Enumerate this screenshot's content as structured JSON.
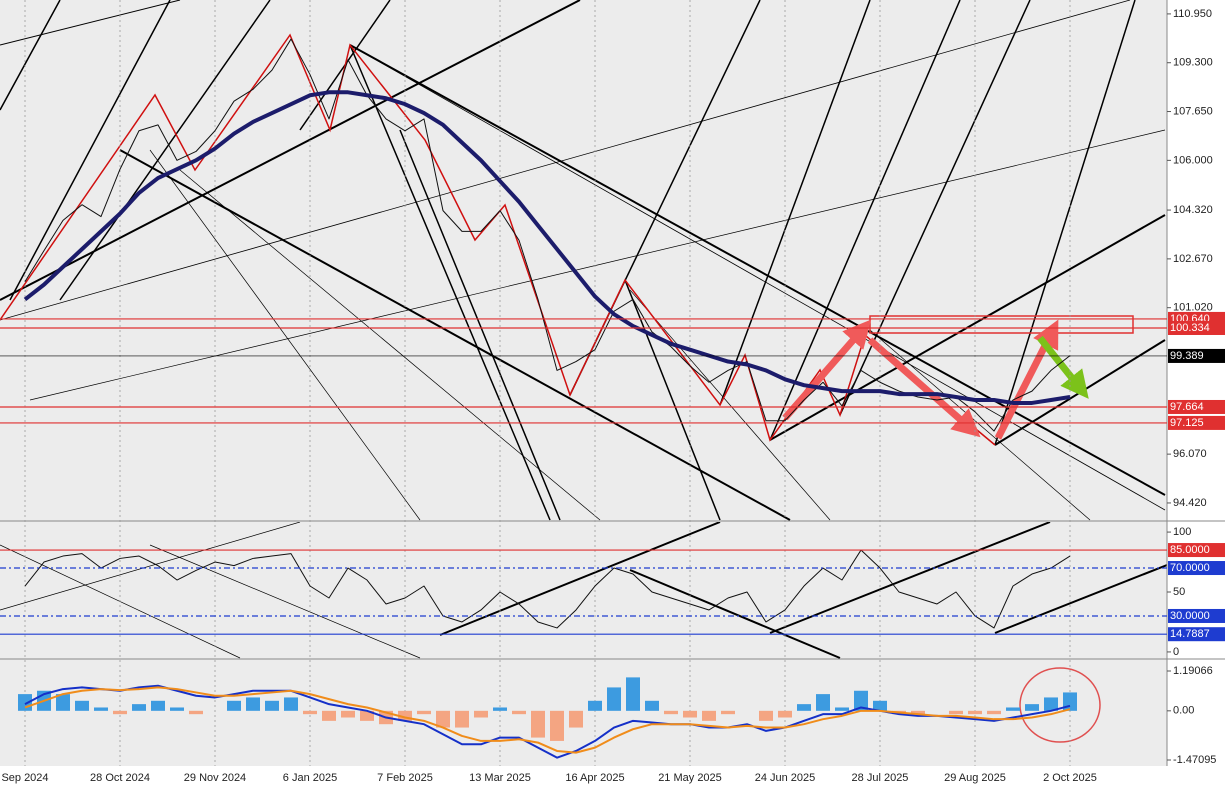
{
  "chart_data": [
    {
      "type": "line",
      "ylim": [
        93.81,
        111.42
      ],
      "yticks": [
        {
          "value": 110.95,
          "label": "110.950"
        },
        {
          "value": 109.3,
          "label": "109.300"
        },
        {
          "value": 107.65,
          "label": "107.650"
        },
        {
          "value": 106,
          "label": "106.000"
        },
        {
          "value": 104.32,
          "label": "104.320"
        },
        {
          "value": 102.67,
          "label": "102.670"
        },
        {
          "value": 101.02,
          "label": "101.020"
        },
        {
          "value": 96.07,
          "label": "96.070"
        },
        {
          "value": 94.42,
          "label": "94.420"
        }
      ],
      "levels": [
        {
          "value": 100.64,
          "label": "100.640",
          "color": "#e03030"
        },
        {
          "value": 100.334,
          "label": "100.334",
          "color": "#e03030"
        },
        {
          "value": 99.389,
          "label": "99.389",
          "color": "#000000"
        },
        {
          "value": 97.664,
          "label": "97.664",
          "color": "#e03030"
        },
        {
          "value": 97.125,
          "label": "97.125",
          "color": "#e03030"
        }
      ],
      "series": [
        {
          "color": "#111111",
          "values": [
            101.9,
            102.95,
            103.97,
            104.5,
            104.1,
            105.7,
            107.0,
            107.2,
            106.0,
            106.3,
            107.0,
            108.0,
            108.4,
            109.05,
            110.1,
            108.9,
            107.4,
            109.4,
            108.2,
            107.4,
            107.0,
            107.4,
            104.3,
            103.6,
            103.6,
            104.3,
            103.3,
            101.3,
            98.9,
            99.2,
            99.6,
            100.9,
            101.3,
            100.2,
            99.7,
            99.05,
            98.5,
            98.9,
            99.2,
            97.2,
            97.2,
            97.9,
            98.5,
            97.7,
            98.9,
            98.5,
            98.2,
            98.0,
            97.9,
            98.0,
            97.5,
            96.85,
            97.9,
            98.2,
            98.9,
            99.4
          ]
        },
        {
          "color": "#1c1c6b",
          "values": [
            101.3,
            101.8,
            102.4,
            103.0,
            103.6,
            104.2,
            104.9,
            105.4,
            105.7,
            106.0,
            106.4,
            106.9,
            107.3,
            107.6,
            107.9,
            108.2,
            108.3,
            108.3,
            108.2,
            108.1,
            107.9,
            107.6,
            107.2,
            106.6,
            106.0,
            105.3,
            104.6,
            103.8,
            103.0,
            102.2,
            101.4,
            100.8,
            100.4,
            100.1,
            99.8,
            99.6,
            99.4,
            99.2,
            99.1,
            98.9,
            98.6,
            98.4,
            98.3,
            98.2,
            98.2,
            98.2,
            98.1,
            98.1,
            98.1,
            98.0,
            97.9,
            97.9,
            97.8,
            97.8,
            97.9,
            98.0
          ]
        }
      ]
    },
    {
      "type": "line",
      "ylim": [
        -5.9,
        108.4
      ],
      "yticks": [
        100,
        50,
        0
      ],
      "levels": [
        {
          "value": 85,
          "label": "85.0000",
          "color": "#e03030"
        },
        {
          "value": 70,
          "label": "70.0000",
          "color": "#1e3cd0"
        },
        {
          "value": 30,
          "label": "30.0000",
          "color": "#1e3cd0"
        },
        {
          "value": 14.7887,
          "label": "14.7887",
          "color": "#1e3cd0"
        }
      ],
      "series": [
        {
          "color": "#111111",
          "values": [
            55,
            75,
            80,
            82,
            70,
            78,
            80,
            72,
            60,
            68,
            75,
            72,
            78,
            80,
            82,
            55,
            45,
            70,
            60,
            40,
            45,
            55,
            30,
            25,
            35,
            50,
            40,
            25,
            20,
            35,
            55,
            70,
            65,
            50,
            45,
            40,
            35,
            45,
            50,
            25,
            35,
            55,
            70,
            60,
            85,
            70,
            50,
            45,
            40,
            50,
            30,
            20,
            55,
            65,
            70,
            80
          ]
        }
      ]
    },
    {
      "type": "bar",
      "ylim": [
        -1.65,
        1.52
      ],
      "yticks": [
        1.19066,
        {
          "value": 0,
          "label": "0.00"
        },
        -1.47095
      ],
      "categories": [
        "Sep 2024",
        null,
        null,
        null,
        null,
        "28 Oct 2024",
        null,
        null,
        null,
        null,
        "29 Nov 2024",
        null,
        null,
        null,
        null,
        "6 Jan 2025",
        null,
        null,
        null,
        null,
        "7 Feb 2025",
        null,
        null,
        null,
        null,
        "13 Mar 2025",
        null,
        null,
        null,
        null,
        "16 Apr 2025",
        null,
        null,
        null,
        null,
        "21 May 2025",
        null,
        null,
        null,
        null,
        "24 Jun 2025",
        null,
        null,
        null,
        null,
        "28 Jul 2025",
        null,
        null,
        null,
        null,
        "29 Aug 2025",
        null,
        null,
        null,
        null,
        "2 Oct 2025"
      ],
      "colors": [
        "#3d9be0",
        "#f4a582"
      ],
      "values": [
        0.5,
        0.6,
        0.5,
        0.3,
        0.1,
        -0.1,
        0.2,
        0.3,
        0.1,
        -0.1,
        0.0,
        0.3,
        0.4,
        0.3,
        0.4,
        -0.1,
        -0.3,
        -0.2,
        -0.3,
        -0.4,
        -0.3,
        -0.1,
        -0.5,
        -0.5,
        -0.2,
        0.1,
        -0.1,
        -0.8,
        -0.9,
        -0.5,
        0.3,
        0.7,
        1.0,
        0.3,
        -0.1,
        -0.2,
        -0.3,
        -0.1,
        0.0,
        -0.3,
        -0.2,
        0.2,
        0.5,
        0.1,
        0.6,
        0.3,
        -0.1,
        -0.1,
        0.0,
        -0.1,
        -0.1,
        -0.1,
        0.1,
        0.2,
        0.4,
        0.55
      ],
      "series": [
        {
          "color": "#1530c8",
          "values": [
            0.2,
            0.5,
            0.65,
            0.7,
            0.65,
            0.6,
            0.7,
            0.75,
            0.6,
            0.45,
            0.4,
            0.5,
            0.6,
            0.6,
            0.6,
            0.4,
            0.2,
            0.1,
            0.0,
            -0.2,
            -0.3,
            -0.4,
            -0.7,
            -1.0,
            -1.0,
            -0.8,
            -0.8,
            -1.1,
            -1.4,
            -1.2,
            -0.9,
            -0.5,
            -0.3,
            -0.35,
            -0.4,
            -0.4,
            -0.5,
            -0.5,
            -0.4,
            -0.6,
            -0.5,
            -0.3,
            -0.1,
            -0.1,
            0.1,
            0.0,
            -0.1,
            -0.15,
            -0.15,
            -0.2,
            -0.25,
            -0.3,
            -0.2,
            -0.1,
            0.0,
            0.15
          ]
        },
        {
          "color": "#f08c1a",
          "values": [
            0.1,
            0.3,
            0.5,
            0.6,
            0.65,
            0.62,
            0.65,
            0.7,
            0.65,
            0.55,
            0.45,
            0.45,
            0.5,
            0.55,
            0.6,
            0.5,
            0.35,
            0.2,
            0.1,
            -0.05,
            -0.2,
            -0.3,
            -0.5,
            -0.75,
            -0.9,
            -0.9,
            -0.85,
            -0.95,
            -1.2,
            -1.25,
            -1.1,
            -0.8,
            -0.55,
            -0.4,
            -0.4,
            -0.4,
            -0.45,
            -0.5,
            -0.45,
            -0.5,
            -0.5,
            -0.4,
            -0.25,
            -0.15,
            0.0,
            0.0,
            -0.05,
            -0.1,
            -0.15,
            -0.15,
            -0.2,
            -0.25,
            -0.25,
            -0.2,
            -0.1,
            0.05
          ]
        }
      ]
    }
  ]
}
